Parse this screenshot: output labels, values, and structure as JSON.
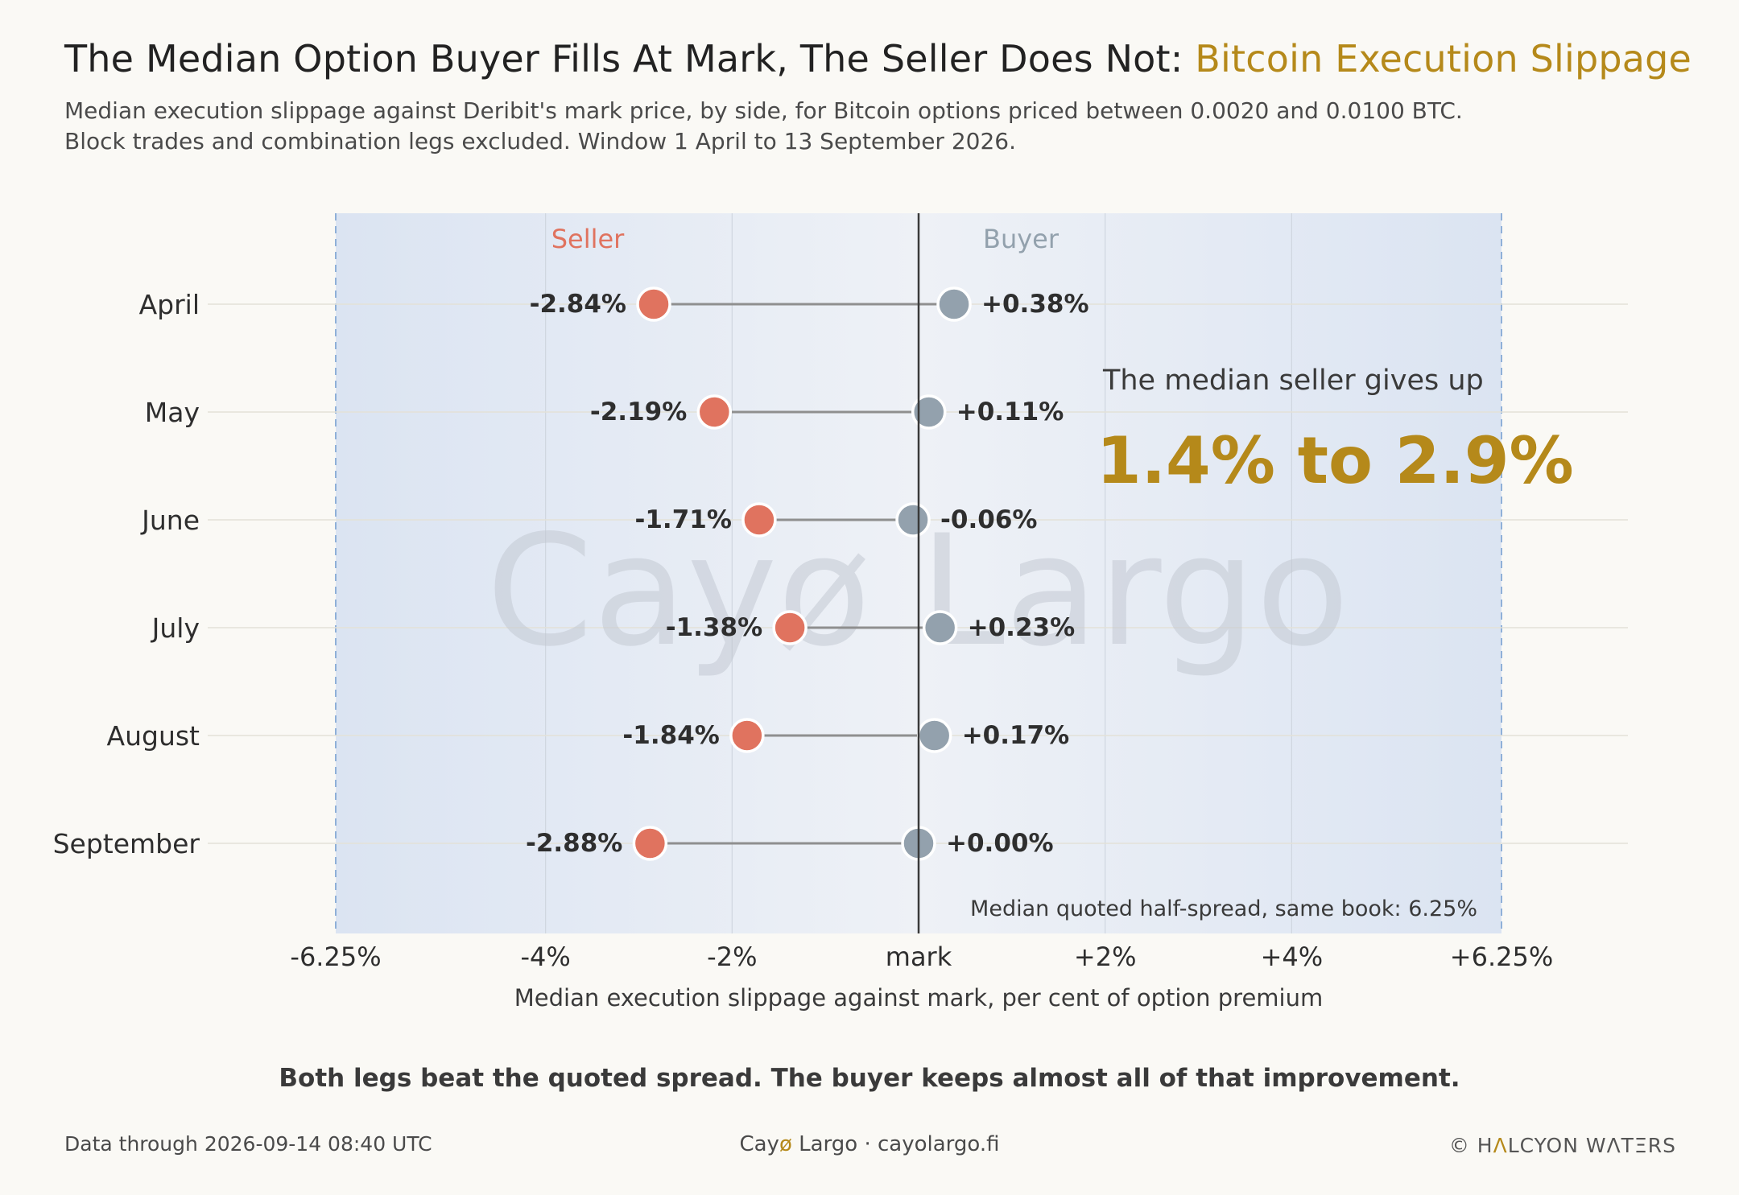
{
  "header": {
    "title_main": "The Median Option Buyer Fills At Mark, The Seller Does Not: ",
    "title_accent": "Bitcoin Execution Slippage",
    "subtitle_line1": "Median execution slippage against Deribit's mark price, by side, for Bitcoin options priced between 0.0020 and 0.0100 BTC.",
    "subtitle_line2": "Block trades and combination legs excluded. Window 1 April to 13 September 2026."
  },
  "chart_data": {
    "type": "dot-range",
    "xlabel": "Median execution slippage against mark, per cent of option premium",
    "xlim": [
      -6.25,
      6.25
    ],
    "x_ticks": [
      -6.25,
      -4,
      -2,
      0,
      2,
      4,
      6.25
    ],
    "x_tick_labels": [
      "-6.25%",
      "-4%",
      "-2%",
      "mark",
      "+2%",
      "+4%",
      "+6.25%"
    ],
    "categories": [
      "April",
      "May",
      "June",
      "July",
      "August",
      "September"
    ],
    "series": [
      {
        "name": "Seller",
        "color": "#e0735f",
        "values": [
          -2.84,
          -2.19,
          -1.71,
          -1.38,
          -1.84,
          -2.88
        ],
        "labels": [
          "-2.84%",
          "-2.19%",
          "-1.71%",
          "-1.38%",
          "-1.84%",
          "-2.88%"
        ]
      },
      {
        "name": "Buyer",
        "color": "#93a1ad",
        "values": [
          0.38,
          0.11,
          -0.06,
          0.23,
          0.17,
          0.0
        ],
        "labels": [
          "+0.38%",
          "+0.11%",
          "-0.06%",
          "+0.23%",
          "+0.17%",
          "+0.00%"
        ]
      }
    ],
    "quoted_half_spread": 6.25,
    "spread_annotation": "Median quoted half-spread, same book: 6.25%",
    "callout_text": "The median seller gives up",
    "callout_value": "1.4% to 2.9%",
    "watermark": "Cayø Largo",
    "grid": true
  },
  "takeaway": "Both legs beat the quoted spread. The buyer keeps almost all of that improvement.",
  "footer": {
    "left": "Data through 2026-09-14 08:40 UTC",
    "center_brand_a": "Cay",
    "center_brand_o": "ø",
    "center_brand_b": " Largo  ·  cayolargo.fi",
    "right_a": "© H",
    "right_accent": "Λ",
    "right_b": "LCYON WΛTΞRS"
  },
  "colors": {
    "accent": "#b5891a",
    "seller": "#e0735f",
    "buyer": "#93a1ad",
    "band": "#dde6f3"
  }
}
